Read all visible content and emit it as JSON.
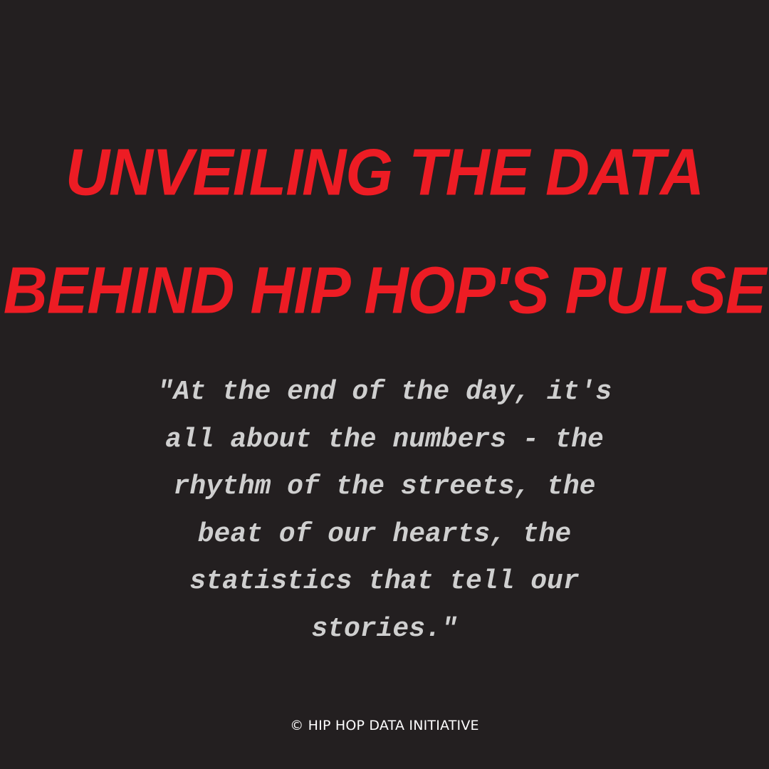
{
  "title": {
    "line1": "Unveiling the data",
    "line2": "behind hip hop's pulse"
  },
  "quote": {
    "lines": [
      "\"At the end of the day, it's",
      "all about the numbers - the",
      "rhythm of the streets, the",
      "beat of our hearts, the",
      "statistics that tell our",
      "stories.\""
    ]
  },
  "footer": {
    "copyright": "© HIP HOP DATA INITIATIVE"
  },
  "colors": {
    "background": "#231f20",
    "title": "#ed1c24",
    "quote": "#cfcfcf",
    "footer": "#ffffff"
  }
}
